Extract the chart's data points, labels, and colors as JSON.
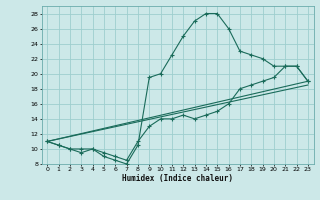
{
  "title": "",
  "xlabel": "Humidex (Indice chaleur)",
  "ylabel": "",
  "bg_color": "#cce8e8",
  "grid_color": "#9ecece",
  "line_color": "#1a6b5a",
  "xlim": [
    -0.5,
    23.5
  ],
  "ylim": [
    8,
    29
  ],
  "xticks": [
    0,
    1,
    2,
    3,
    4,
    5,
    6,
    7,
    8,
    9,
    10,
    11,
    12,
    13,
    14,
    15,
    16,
    17,
    18,
    19,
    20,
    21,
    22,
    23
  ],
  "yticks": [
    8,
    10,
    12,
    14,
    16,
    18,
    20,
    22,
    24,
    26,
    28
  ],
  "curve1_x": [
    0,
    1,
    2,
    3,
    4,
    5,
    6,
    7,
    8,
    9,
    10,
    11,
    12,
    13,
    14,
    15,
    16,
    17,
    18,
    19,
    20,
    21,
    22,
    23
  ],
  "curve1_y": [
    11,
    10.5,
    10,
    9.5,
    10,
    9,
    8.5,
    8,
    10.5,
    19.5,
    20,
    22.5,
    25,
    27,
    28,
    28,
    26,
    23,
    22.5,
    22,
    21,
    21,
    21,
    19
  ],
  "curve2_x": [
    0,
    1,
    2,
    3,
    4,
    5,
    6,
    7,
    8,
    9,
    10,
    11,
    12,
    13,
    14,
    15,
    16,
    17,
    18,
    19,
    20,
    21,
    22,
    23
  ],
  "curve2_y": [
    11,
    10.5,
    10,
    10,
    10,
    9.5,
    9,
    8.5,
    11,
    13,
    14,
    14,
    14.5,
    14,
    14.5,
    15,
    16,
    18,
    18.5,
    19,
    19.5,
    21,
    21,
    19
  ],
  "line1_x": [
    0,
    23
  ],
  "line1_y": [
    11,
    19.0
  ],
  "line2_x": [
    0,
    23
  ],
  "line2_y": [
    11,
    18.5
  ]
}
